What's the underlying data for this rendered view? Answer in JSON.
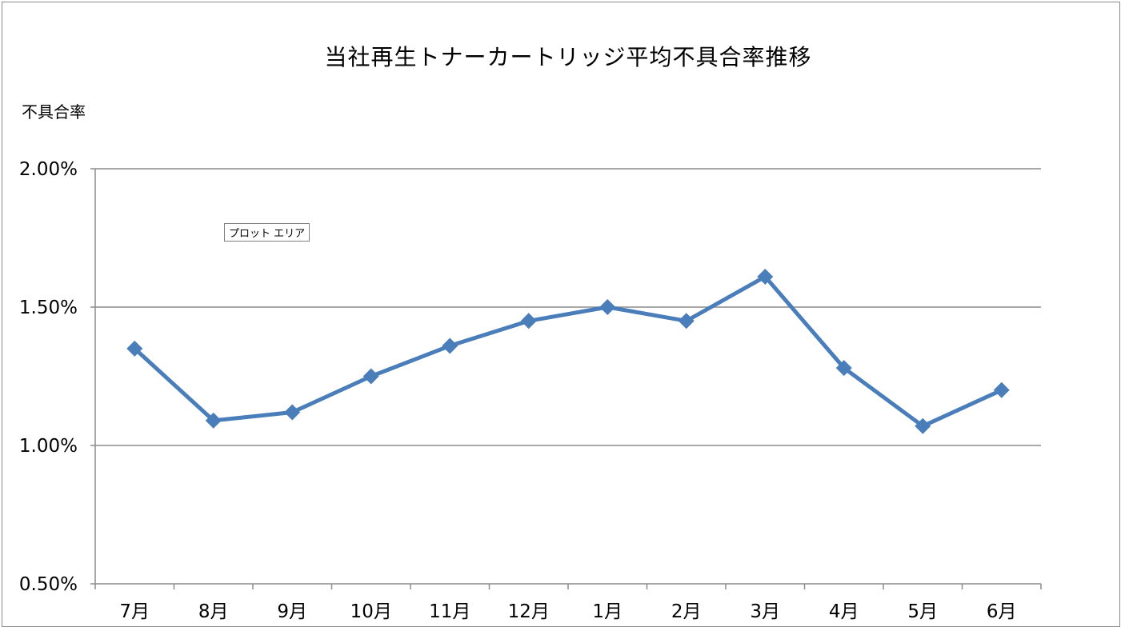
{
  "chart_data": {
    "type": "line",
    "title": "当社再生トナーカートリッジ平均不具合率推移",
    "ylabel": "不具合率",
    "xlabel": "",
    "categories": [
      "7月",
      "8月",
      "9月",
      "10月",
      "11月",
      "12月",
      "1月",
      "2月",
      "3月",
      "4月",
      "5月",
      "6月"
    ],
    "series": [
      {
        "values": [
          1.35,
          1.09,
          1.12,
          1.25,
          1.36,
          1.45,
          1.5,
          1.45,
          1.61,
          1.28,
          1.07,
          1.2
        ]
      }
    ],
    "yticks": [
      0.5,
      1.0,
      1.5,
      2.0
    ],
    "ytick_labels": [
      "0.50%",
      "1.00%",
      "1.50%",
      "2.00%"
    ],
    "ylim": [
      0.5,
      2.0
    ],
    "grid": "horizontal",
    "legend": "none",
    "line_color": "#4a7ebb",
    "marker": "diamond",
    "tooltip": "プロット エリア"
  }
}
